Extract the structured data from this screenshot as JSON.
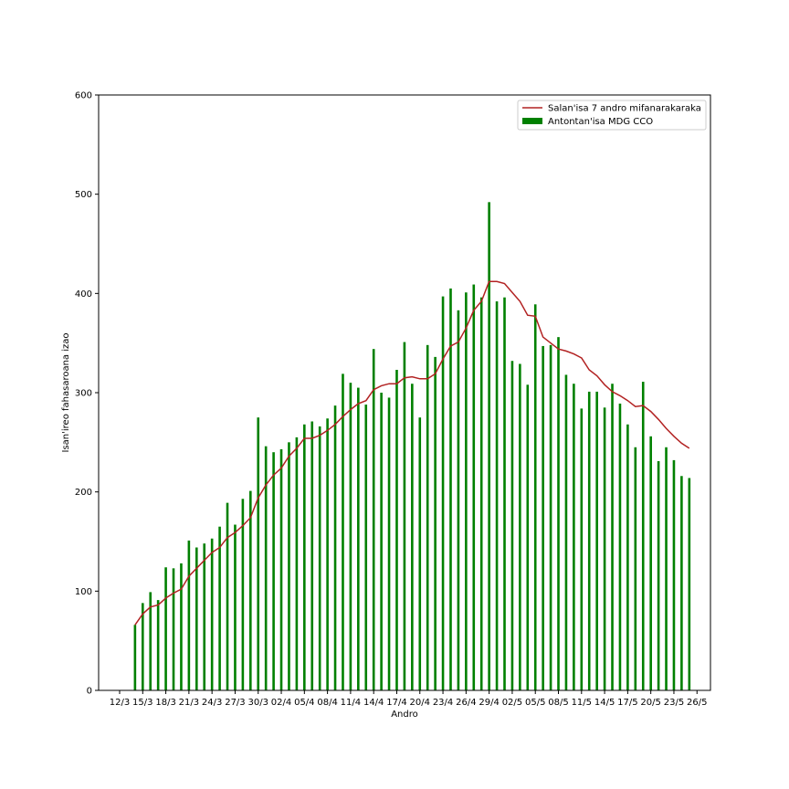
{
  "chart_data": {
    "type": "bar",
    "xlabel": "Andro",
    "ylabel": "Isan'ireo fahasaroana izao",
    "ylim": [
      0,
      600
    ],
    "yticks": [
      0,
      100,
      200,
      300,
      400,
      500,
      600
    ],
    "xticks": [
      "12/3",
      "15/3",
      "18/3",
      "21/3",
      "24/3",
      "27/3",
      "30/3",
      "02/4",
      "05/4",
      "08/4",
      "11/4",
      "14/4",
      "17/4",
      "20/4",
      "23/4",
      "26/4",
      "29/4",
      "02/5",
      "05/5",
      "08/5",
      "11/5",
      "14/5",
      "17/5",
      "20/5",
      "23/5",
      "26/5"
    ],
    "x_start": "12/3",
    "legend_position": "top-right",
    "grid": false,
    "colors": {
      "bars": "#008000",
      "line": "#b22222"
    },
    "series": [
      {
        "name": "Antontan'isa MDG CCO",
        "type": "bar",
        "start_date": "13/3",
        "values": [
          0,
          66,
          88,
          99,
          91,
          124,
          123,
          128,
          151,
          144,
          148,
          153,
          165,
          189,
          167,
          193,
          201,
          275,
          246,
          240,
          243,
          250,
          255,
          268,
          271,
          266,
          274,
          287,
          319,
          310,
          305,
          288,
          344,
          300,
          295,
          323,
          351,
          309,
          275,
          348,
          336,
          397,
          405,
          383,
          401,
          409,
          396,
          492,
          392,
          396,
          332,
          329,
          308,
          389,
          347,
          348,
          356,
          318,
          309,
          284,
          301,
          301,
          285,
          309,
          289,
          268,
          245,
          311,
          256,
          231,
          245,
          232,
          216,
          214
        ]
      },
      {
        "name": "Salan'isa 7 andro mifanarakaraka",
        "type": "line",
        "start_date": "13/3",
        "values": [
          null,
          66,
          77,
          84,
          86,
          93,
          98,
          102,
          115,
          123,
          131,
          139,
          144,
          154,
          159,
          166,
          174,
          194,
          207,
          217,
          224,
          236,
          244,
          254,
          254,
          257,
          262,
          268,
          276,
          283,
          289,
          292,
          303,
          307,
          309,
          309,
          315,
          316,
          314,
          314,
          319,
          334,
          347,
          351,
          365,
          383,
          392,
          412,
          412,
          410,
          401,
          392,
          378,
          377,
          356,
          350,
          344,
          342,
          339,
          335,
          323,
          317,
          308,
          301,
          297,
          292,
          286,
          287,
          281,
          273,
          264,
          256,
          249,
          244
        ]
      }
    ]
  }
}
